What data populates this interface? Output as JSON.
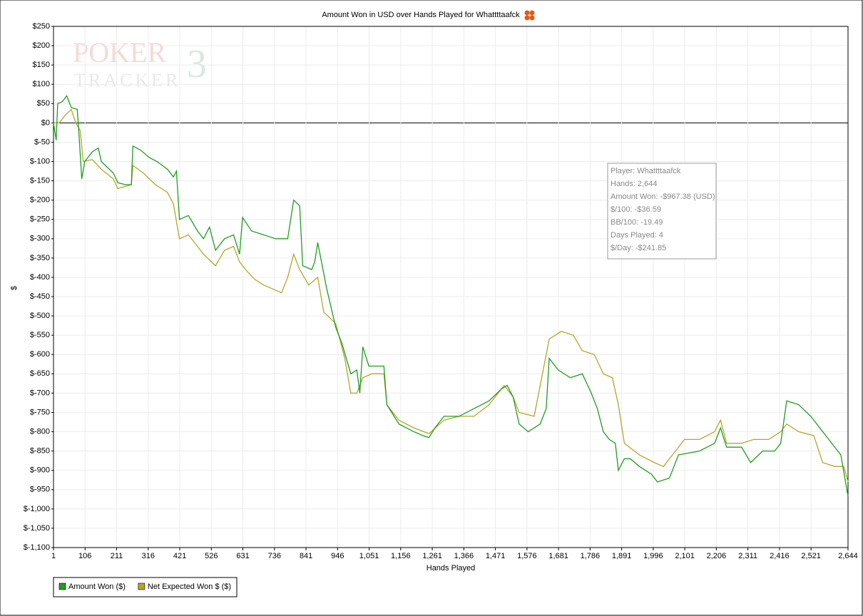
{
  "chart_data": {
    "type": "line",
    "title": "Amount Won in USD over Hands Played for Whattttaafck",
    "xlabel": "Hands Played",
    "ylabel": "$",
    "xlim": [
      1,
      2644
    ],
    "ylim": [
      -1100,
      250
    ],
    "xticks": [
      1,
      106,
      211,
      316,
      421,
      526,
      631,
      736,
      841,
      946,
      {
        "value": 1051,
        "label": "1,051"
      },
      {
        "value": 1156,
        "label": "1,156"
      },
      {
        "value": 1261,
        "label": "1,261"
      },
      {
        "value": 1366,
        "label": "1,366"
      },
      {
        "value": 1471,
        "label": "1,471"
      },
      {
        "value": 1576,
        "label": "1,576"
      },
      {
        "value": 1681,
        "label": "1,681"
      },
      {
        "value": 1786,
        "label": "1,786"
      },
      {
        "value": 1891,
        "label": "1,891"
      },
      {
        "value": 1996,
        "label": "1,996"
      },
      {
        "value": 2101,
        "label": "2,101"
      },
      {
        "value": 2206,
        "label": "2,206"
      },
      {
        "value": 2311,
        "label": "2,311"
      },
      {
        "value": 2416,
        "label": "2,416"
      },
      {
        "value": 2521,
        "label": "2,521"
      },
      {
        "value": 2644,
        "label": "2,644"
      }
    ],
    "yticks": [
      {
        "value": 250,
        "label": "$250"
      },
      {
        "value": 200,
        "label": "$200"
      },
      {
        "value": 150,
        "label": "$150"
      },
      {
        "value": 100,
        "label": "$100"
      },
      {
        "value": 50,
        "label": "$50"
      },
      {
        "value": 0,
        "label": "$0"
      },
      {
        "value": -50,
        "label": "$-50"
      },
      {
        "value": -100,
        "label": "$-100"
      },
      {
        "value": -150,
        "label": "$-150"
      },
      {
        "value": -200,
        "label": "$-200"
      },
      {
        "value": -250,
        "label": "$-250"
      },
      {
        "value": -300,
        "label": "$-300"
      },
      {
        "value": -350,
        "label": "$-350"
      },
      {
        "value": -400,
        "label": "$-400"
      },
      {
        "value": -450,
        "label": "$-450"
      },
      {
        "value": -500,
        "label": "$-500"
      },
      {
        "value": -550,
        "label": "$-550"
      },
      {
        "value": -600,
        "label": "$-600"
      },
      {
        "value": -650,
        "label": "$-650"
      },
      {
        "value": -700,
        "label": "$-700"
      },
      {
        "value": -750,
        "label": "$-750"
      },
      {
        "value": -800,
        "label": "$-800"
      },
      {
        "value": -850,
        "label": "$-850"
      },
      {
        "value": -900,
        "label": "$-900"
      },
      {
        "value": -950,
        "label": "$-950"
      },
      {
        "value": -1000,
        "label": "$-1,000"
      },
      {
        "value": -1050,
        "label": "$-1,050"
      },
      {
        "value": -1100,
        "label": "$-1,100"
      }
    ],
    "grid": true,
    "zero_line": true,
    "series": [
      {
        "name": "Amount Won ($)",
        "color": "#1f9e1f",
        "x": [
          1,
          10,
          15,
          30,
          45,
          60,
          80,
          85,
          95,
          105,
          130,
          150,
          160,
          180,
          200,
          215,
          240,
          260,
          265,
          290,
          320,
          345,
          380,
          400,
          410,
          420,
          450,
          480,
          500,
          520,
          540,
          570,
          600,
          620,
          630,
          660,
          700,
          740,
          780,
          790,
          800,
          820,
          830,
          860,
          870,
          880,
          900,
          910,
          940,
          960,
          990,
          1010,
          1020,
          1030,
          1050,
          1100,
          1110,
          1150,
          1200,
          1230,
          1250,
          1270,
          1300,
          1350,
          1400,
          1450,
          1490,
          1510,
          1530,
          1550,
          1580,
          1620,
          1640,
          1650,
          1680,
          1720,
          1760,
          1790,
          1810,
          1830,
          1850,
          1870,
          1880,
          1900,
          1920,
          1950,
          1990,
          2010,
          2050,
          2080,
          2150,
          2200,
          2220,
          2240,
          2290,
          2320,
          2360,
          2400,
          2420,
          2440,
          2480,
          2520,
          2560,
          2580,
          2620,
          2644
        ],
        "values": [
          0,
          -45,
          50,
          55,
          70,
          40,
          35,
          -20,
          -145,
          -100,
          -75,
          -65,
          -100,
          -115,
          -130,
          -155,
          -160,
          -160,
          -60,
          -70,
          -90,
          -100,
          -120,
          -140,
          -125,
          -250,
          -240,
          -280,
          -300,
          -270,
          -330,
          -300,
          -290,
          -340,
          -245,
          -280,
          -290,
          -300,
          -300,
          -250,
          -200,
          -215,
          -370,
          -380,
          -360,
          -310,
          -390,
          -430,
          -530,
          -570,
          -650,
          -640,
          -700,
          -580,
          -630,
          -630,
          -730,
          -780,
          -800,
          -810,
          -815,
          -790,
          -760,
          -760,
          -740,
          -720,
          -690,
          -680,
          -710,
          -780,
          -800,
          -780,
          -740,
          -610,
          -640,
          -660,
          -650,
          -700,
          -740,
          -800,
          -820,
          -830,
          -900,
          -870,
          -870,
          -890,
          -910,
          -930,
          -920,
          -860,
          -850,
          -830,
          -790,
          -840,
          -840,
          -880,
          -850,
          -850,
          -830,
          -720,
          -730,
          -760,
          -800,
          -820,
          -860,
          -967.38
        ]
      },
      {
        "name": "Net Expected Won $ ($)",
        "color": "#b3a62a",
        "x": [
          1,
          20,
          40,
          60,
          75,
          90,
          100,
          130,
          160,
          200,
          215,
          260,
          265,
          300,
          340,
          380,
          400,
          420,
          450,
          480,
          500,
          540,
          570,
          600,
          620,
          640,
          670,
          700,
          730,
          760,
          780,
          800,
          820,
          850,
          880,
          900,
          940,
          970,
          990,
          1010,
          1030,
          1060,
          1100,
          1110,
          1150,
          1200,
          1250,
          1300,
          1350,
          1400,
          1450,
          1500,
          1530,
          1550,
          1600,
          1650,
          1690,
          1730,
          1760,
          1800,
          1830,
          1860,
          1880,
          1900,
          1950,
          2000,
          2030,
          2070,
          2100,
          2150,
          2200,
          2220,
          2240,
          2290,
          2330,
          2380,
          2420,
          2440,
          2480,
          2530,
          2560,
          2600,
          2630,
          2644
        ],
        "values": [
          0,
          0,
          20,
          35,
          0,
          -20,
          -100,
          -95,
          -120,
          -145,
          -170,
          -160,
          -110,
          -130,
          -160,
          -180,
          -210,
          -300,
          -290,
          -320,
          -340,
          -370,
          -330,
          -320,
          -360,
          -380,
          -405,
          -420,
          -430,
          -440,
          -400,
          -340,
          -380,
          -420,
          -400,
          -490,
          -520,
          -610,
          -700,
          -700,
          -660,
          -650,
          -650,
          -730,
          -770,
          -790,
          -805,
          -770,
          -760,
          -760,
          -730,
          -680,
          -710,
          -750,
          -760,
          -560,
          -540,
          -550,
          -590,
          -600,
          -650,
          -660,
          -730,
          -830,
          -860,
          -880,
          -890,
          -850,
          -820,
          -820,
          -800,
          -770,
          -830,
          -830,
          -820,
          -820,
          -800,
          -780,
          -800,
          -810,
          -880,
          -890,
          -890,
          -930
        ]
      }
    ],
    "watermark": {
      "line1": "POKER",
      "line2": "TRACKER",
      "badge": "3"
    },
    "info_box": {
      "lines": [
        "Player: Whattttaafck",
        "Hands: 2,644",
        "Amount Won: -$967.38 (USD)",
        "$/100: -$36.59",
        "BB/100: -19.49",
        "Days Played: 4",
        "$/Day: -$241.85"
      ]
    }
  }
}
